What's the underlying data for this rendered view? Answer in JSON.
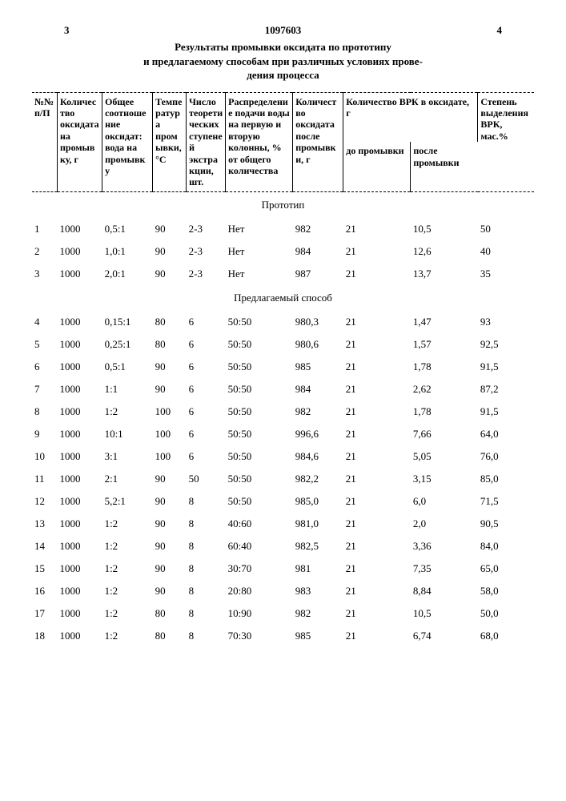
{
  "page": {
    "left_num": "3",
    "doc_num": "1097603",
    "right_num": "4"
  },
  "title": {
    "l1": "Результаты промывки оксидата по прототипу",
    "l2": "и предлагаемому способам при различных условиях прове-",
    "l3": "дения процесса"
  },
  "headers": [
    "№№ п/П",
    "Количество оксидата на промывку, г",
    "Общее соотношение оксидат: вода на промывку",
    "Температура промывки, °С",
    "Число теоретических ступеней экстракции, шт.",
    "Распределение подачи воды на первую и вторую колонны, % от общего количества",
    "Количество оксидата после промывки, г",
    "Количество ВРК в оксидате, г",
    "Степень выделения ВРК, мас.%"
  ],
  "subheaders": [
    "до промывки",
    "после промывки"
  ],
  "sections": {
    "s1": "Прототип",
    "s2": "Предлагаемый способ"
  },
  "rows_prototype": [
    [
      "1",
      "1000",
      "0,5:1",
      "90",
      "2-3",
      "Нет",
      "982",
      "21",
      "10,5",
      "50"
    ],
    [
      "2",
      "1000",
      "1,0:1",
      "90",
      "2-3",
      "Нет",
      "984",
      "21",
      "12,6",
      "40"
    ],
    [
      "3",
      "1000",
      "2,0:1",
      "90",
      "2-3",
      "Нет",
      "987",
      "21",
      "13,7",
      "35"
    ]
  ],
  "rows_proposed": [
    [
      "4",
      "1000",
      "0,15:1",
      "80",
      "6",
      "50:50",
      "980,3",
      "21",
      "1,47",
      "93"
    ],
    [
      "5",
      "1000",
      "0,25:1",
      "80",
      "6",
      "50:50",
      "980,6",
      "21",
      "1,57",
      "92,5"
    ],
    [
      "6",
      "1000",
      "0,5:1",
      "90",
      "6",
      "50:50",
      "985",
      "21",
      "1,78",
      "91,5"
    ],
    [
      "7",
      "1000",
      "1:1",
      "90",
      "6",
      "50:50",
      "984",
      "21",
      "2,62",
      "87,2"
    ],
    [
      "8",
      "1000",
      "1:2",
      "100",
      "6",
      "50:50",
      "982",
      "21",
      "1,78",
      "91,5"
    ],
    [
      "9",
      "1000",
      "10:1",
      "100",
      "6",
      "50:50",
      "996,6",
      "21",
      "7,66",
      "64,0"
    ],
    [
      "10",
      "1000",
      "3:1",
      "100",
      "6",
      "50:50",
      "984,6",
      "21",
      "5,05",
      "76,0"
    ],
    [
      "11",
      "1000",
      "2:1",
      "90",
      "50",
      "50:50",
      "982,2",
      "21",
      "3,15",
      "85,0"
    ],
    [
      "12",
      "1000",
      "5,2:1",
      "90",
      "8",
      "50:50",
      "985,0",
      "21",
      "6,0",
      "71,5"
    ],
    [
      "13",
      "1000",
      "1:2",
      "90",
      "8",
      "40:60",
      "981,0",
      "21",
      "2,0",
      "90,5"
    ],
    [
      "14",
      "1000",
      "1:2",
      "90",
      "8",
      "60:40",
      "982,5",
      "21",
      "3,36",
      "84,0"
    ],
    [
      "15",
      "1000",
      "1:2",
      "90",
      "8",
      "30:70",
      "981",
      "21",
      "7,35",
      "65,0"
    ],
    [
      "16",
      "1000",
      "1:2",
      "90",
      "8",
      "20:80",
      "983",
      "21",
      "8,84",
      "58,0"
    ],
    [
      "17",
      "1000",
      "1:2",
      "80",
      "8",
      "10:90",
      "982",
      "21",
      "10,5",
      "50,0"
    ],
    [
      "18",
      "1000",
      "1:2",
      "80",
      "8",
      "70:30",
      "985",
      "21",
      "6,74",
      "68,0"
    ]
  ]
}
